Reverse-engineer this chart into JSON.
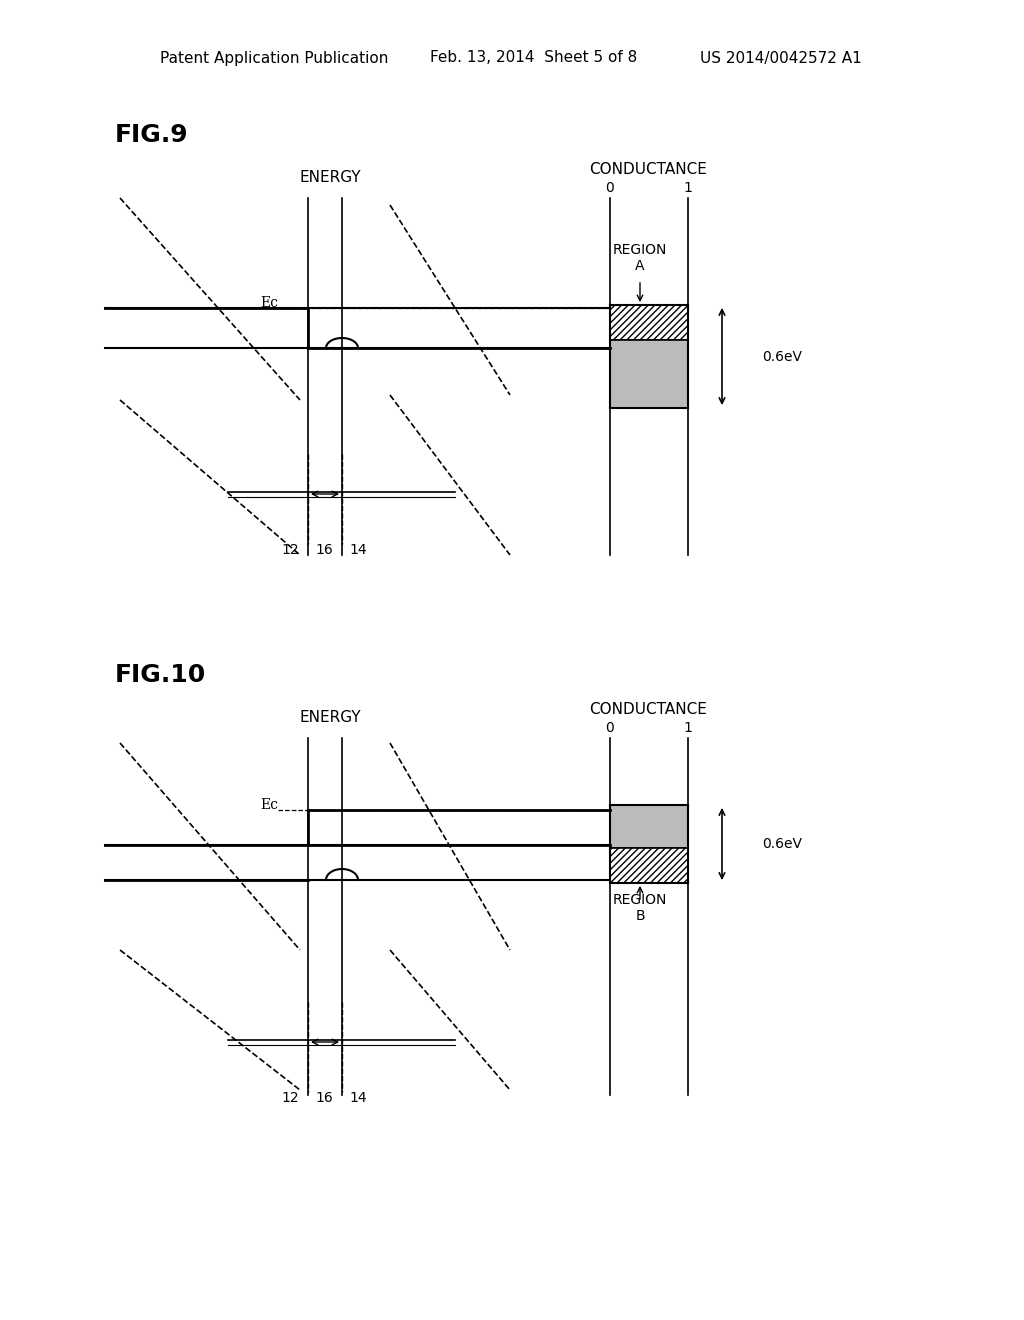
{
  "bg_color": "#ffffff",
  "header_text": "Patent Application Publication",
  "header_date": "Feb. 13, 2014  Sheet 5 of 8",
  "header_patent": "US 2014/0042572 A1",
  "fig9_label": "FIG.9",
  "fig10_label": "FIG.10",
  "energy_label": "ENERGY",
  "conductance_label": "CONDUCTANCE",
  "region_a_label": "REGION\nA",
  "region_b_label": "REGION\nB",
  "ev_label": "0.6eV",
  "ec_label": "Ec",
  "label_12": "12",
  "label_14": "14",
  "label_16": "16",
  "cond_0": "0",
  "cond_1": "1"
}
